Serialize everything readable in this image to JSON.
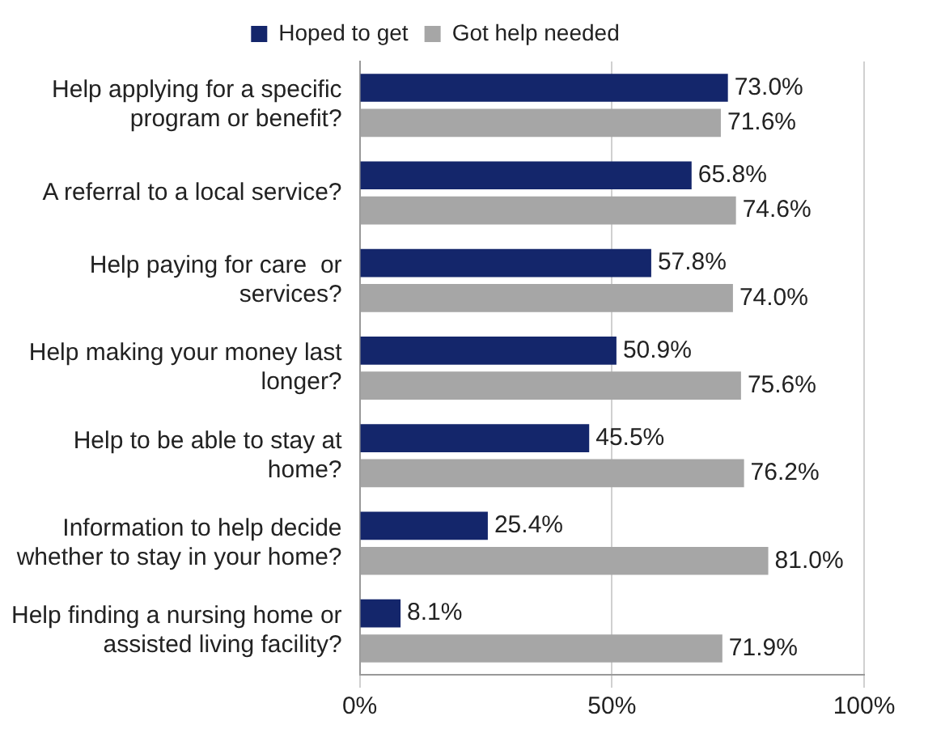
{
  "chart_data": {
    "type": "bar",
    "orientation": "horizontal",
    "categories": [
      "Help applying for a specific program or benefit?",
      "A referral to a local service?",
      "Help paying for care  or services?",
      "Help making your money last longer?",
      "Help to be able to stay at home?",
      "Information to help decide whether to stay in your home?",
      "Help finding a nursing home or assisted living facility?"
    ],
    "series": [
      {
        "name": "Hoped to get",
        "color": "#14266b",
        "values": [
          73.0,
          65.8,
          57.8,
          50.9,
          45.5,
          25.4,
          8.1
        ],
        "value_labels": [
          "73.0%",
          "65.8%",
          "57.8%",
          "50.9%",
          "45.5%",
          "25.4%",
          "8.1%"
        ]
      },
      {
        "name": "Got help needed",
        "color": "#a6a6a6",
        "values": [
          71.6,
          74.6,
          74.0,
          75.6,
          76.2,
          81.0,
          71.9
        ],
        "value_labels": [
          "71.6%",
          "74.6%",
          "74.0%",
          "75.6%",
          "76.2%",
          "81.0%",
          "71.9%"
        ]
      }
    ],
    "xlim": [
      0,
      100
    ],
    "xticks": [
      {
        "value": 0,
        "label": "0%"
      },
      {
        "value": 50,
        "label": "50%"
      },
      {
        "value": 100,
        "label": "100%"
      }
    ],
    "grid": "x",
    "legend": "top"
  }
}
